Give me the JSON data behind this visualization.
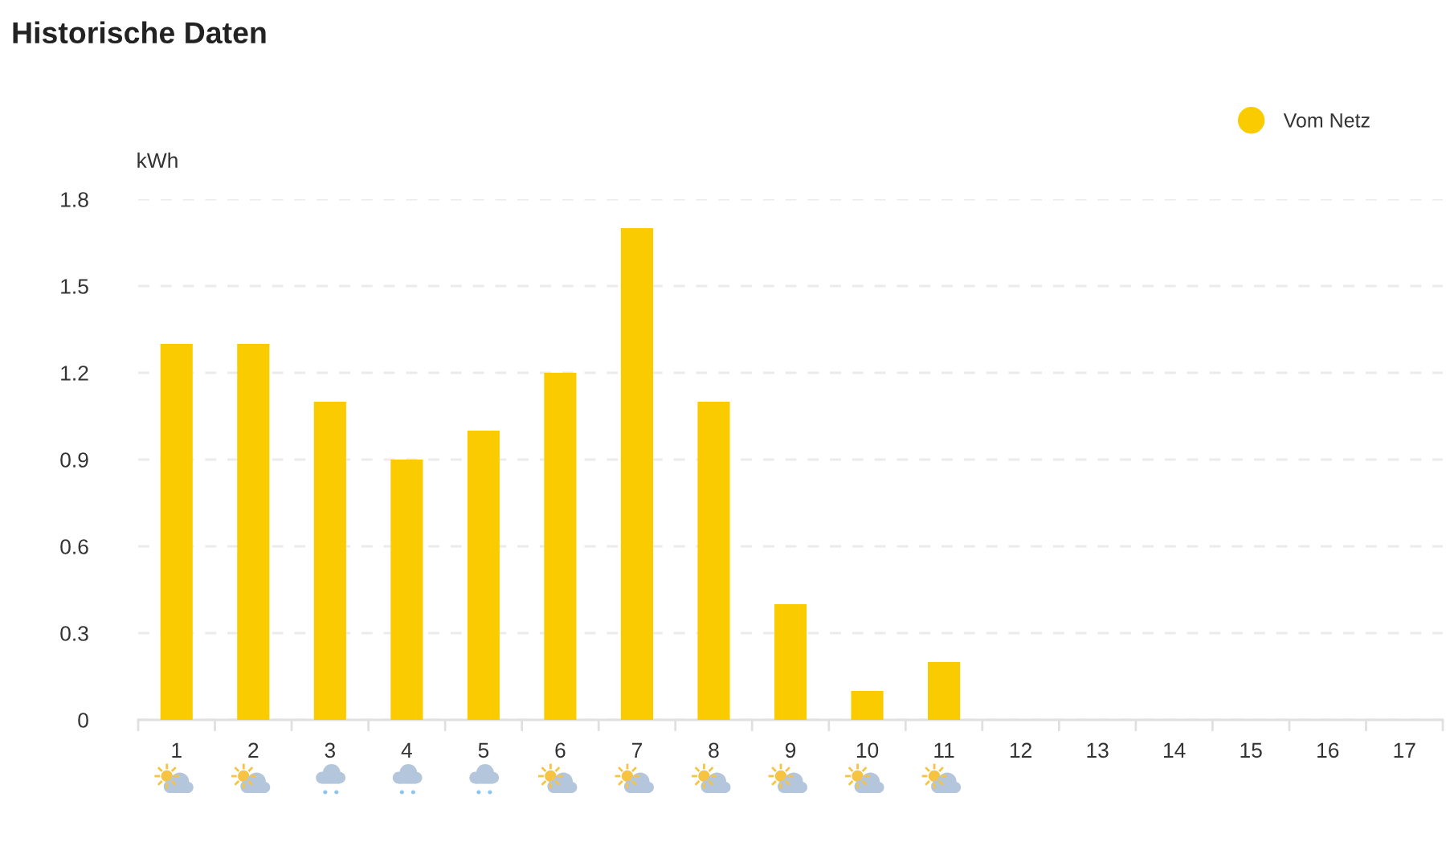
{
  "chart_data": {
    "type": "bar",
    "title": "Historische Daten",
    "ylabel": "kWh",
    "categories": [
      "1",
      "2",
      "3",
      "4",
      "5",
      "6",
      "7",
      "8",
      "9",
      "10",
      "11",
      "12",
      "13",
      "14",
      "15",
      "16",
      "17"
    ],
    "series": [
      {
        "name": "Vom Netz",
        "color": "#facc00",
        "values": [
          1.3,
          1.3,
          1.1,
          0.9,
          1.0,
          1.2,
          1.7,
          1.1,
          0.4,
          0.1,
          0.2,
          null,
          null,
          null,
          null,
          null,
          null
        ]
      }
    ],
    "ylim": [
      0,
      1.8
    ],
    "yticks": [
      0,
      0.3,
      0.6,
      0.9,
      1.2,
      1.5,
      1.8
    ],
    "grid": "y",
    "legend": "top right"
  }
}
